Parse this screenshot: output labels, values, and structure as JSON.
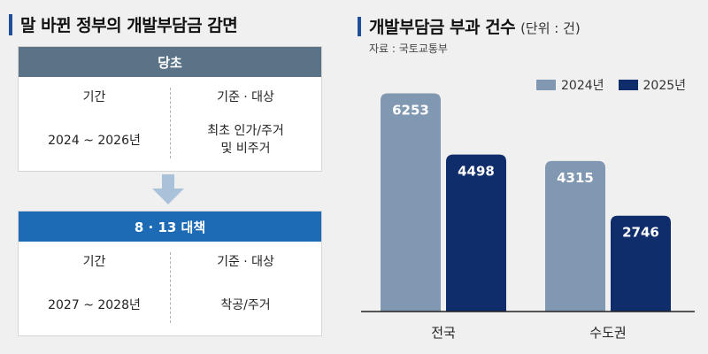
{
  "left": {
    "title": "말 바뀐 정부의 개발부담금 감면",
    "original": {
      "header": "당초",
      "col1_label": "기간",
      "col2_label": "기준 · 대상",
      "period": "2024 ~ 2026년",
      "target_line1": "최초 인가/주거",
      "target_line2": "및 비주거"
    },
    "revised": {
      "header": "8 · 13 대책",
      "col1_label": "기간",
      "col2_label": "기준 · 대상",
      "period": "2027 ~ 2028년",
      "target": "착공/주거"
    }
  },
  "chart_data": {
    "type": "bar",
    "title": "개발부담금 부과 건수",
    "unit": "(단위 : 건)",
    "source": "자료 : 국토교통부",
    "categories": [
      "전국",
      "수도권"
    ],
    "series": [
      {
        "name": "2024년",
        "values": [
          6253,
          4315
        ],
        "color": "#8098b1"
      },
      {
        "name": "2025년",
        "values": [
          4498,
          2746
        ],
        "color": "#0f2d6b"
      }
    ],
    "ylim": [
      0,
      7000
    ],
    "grid": false,
    "legend": "top-right"
  },
  "colors": {
    "accent": "#1f4e9a",
    "header_gray": "#5b7387",
    "header_blue": "#1d6bb5"
  }
}
